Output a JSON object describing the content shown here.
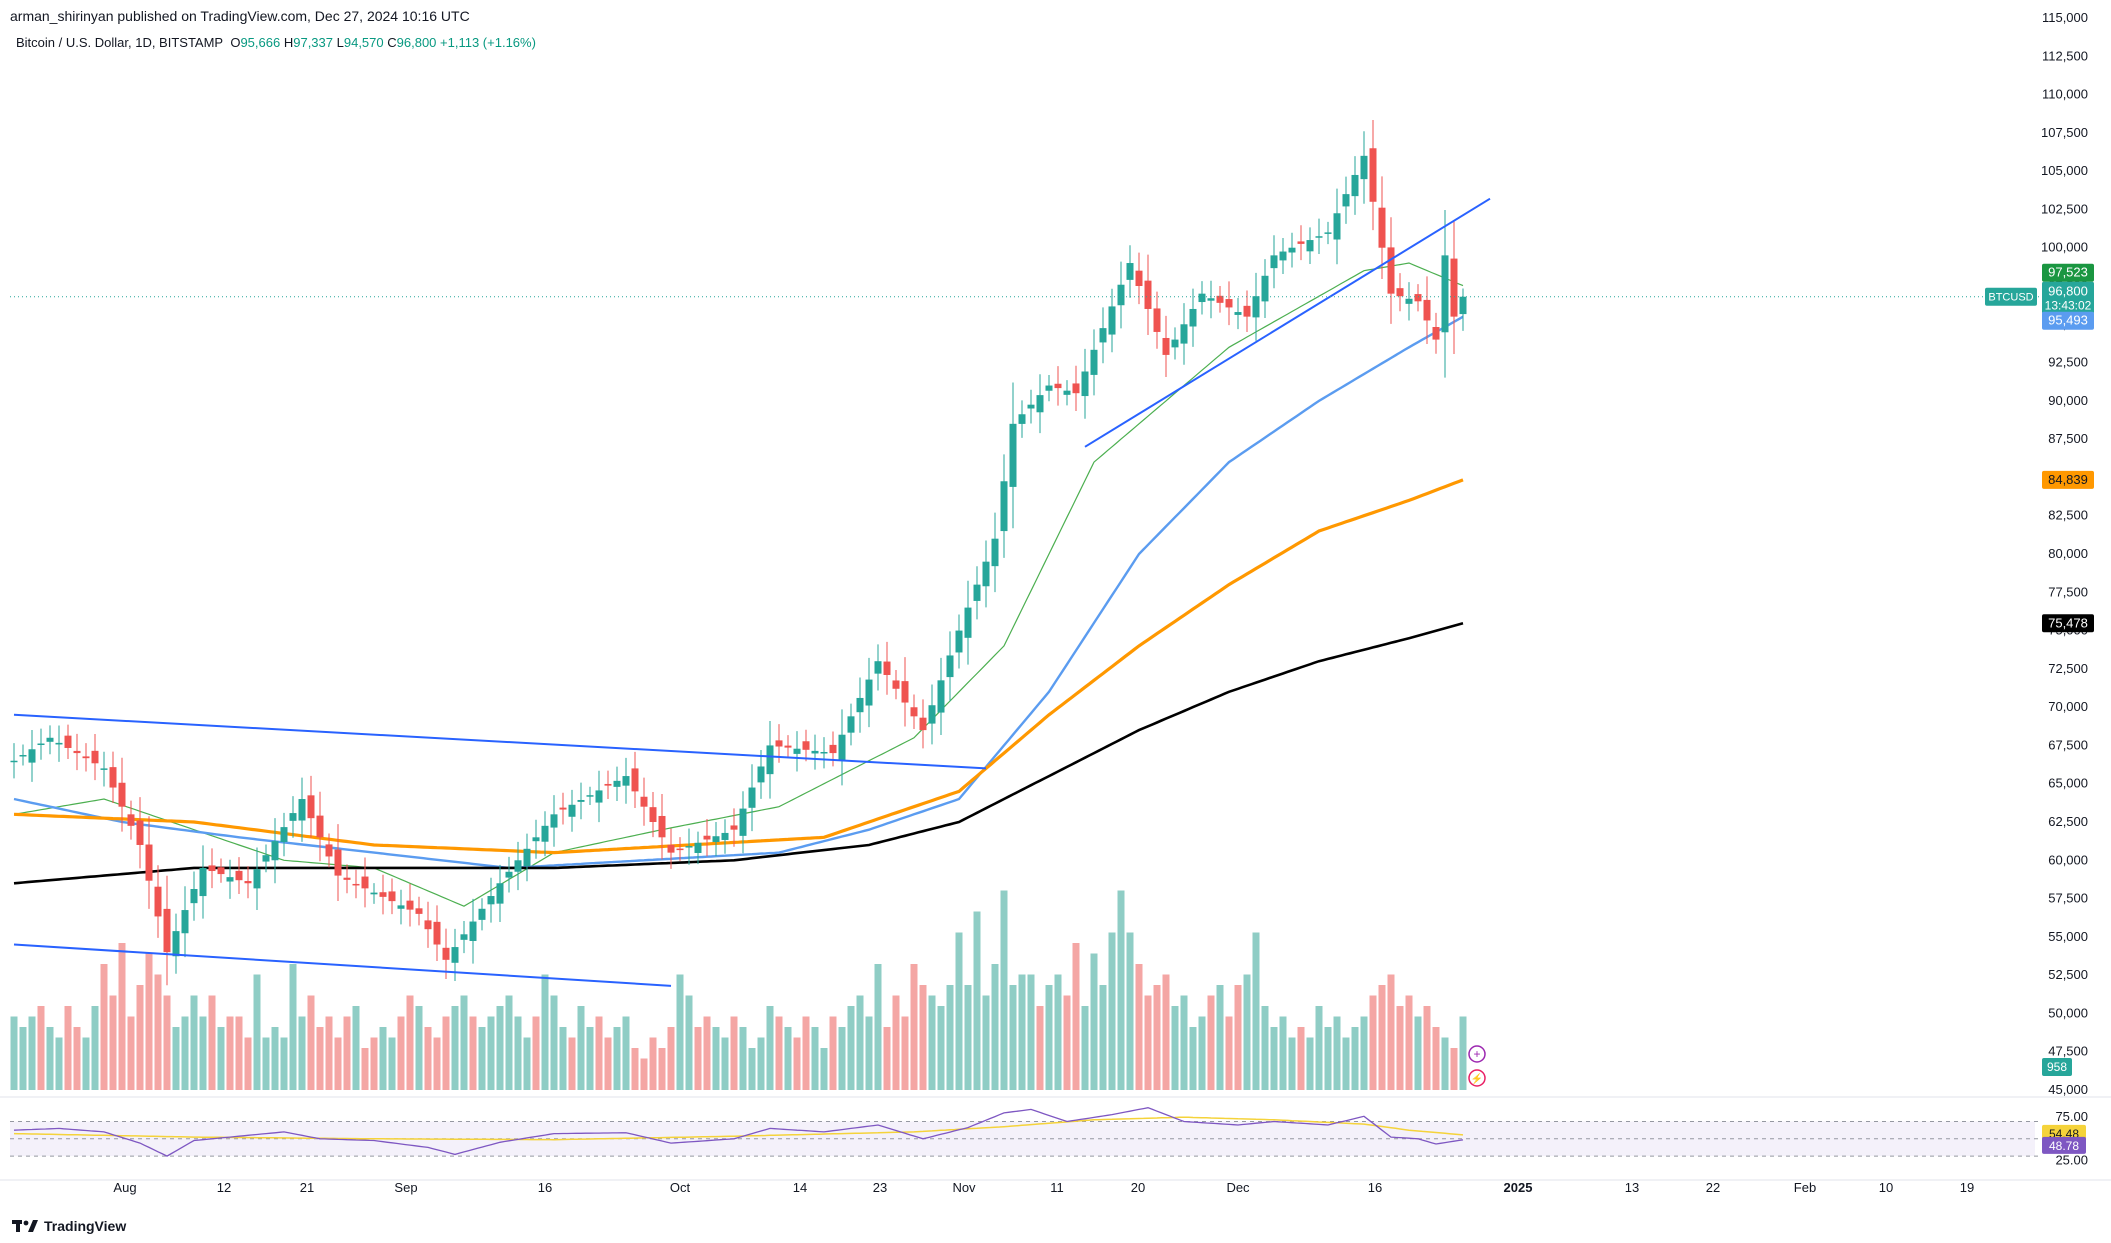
{
  "header": {
    "published": "arman_shirinyan published on TradingView.com, Dec 27, 2024 10:16 UTC"
  },
  "legend": {
    "symbol": "Bitcoin / U.S. Dollar, 1D, BITSTAMP",
    "open_label": "O",
    "open": "95,666",
    "high_label": "H",
    "high": "97,337",
    "low_label": "L",
    "low": "94,570",
    "close_label": "C",
    "close": "96,800",
    "change": "+1,113 (+1.16%)"
  },
  "footer": {
    "brand": "TradingView"
  },
  "colors": {
    "up": "#26a69a",
    "down": "#ef5350",
    "vol_up": "#8fcdc5",
    "vol_down": "#f4a6a4",
    "ema20": "#4caf50",
    "ema50": "#5b9cf0",
    "ema100": "#ff9800",
    "ema200": "#000000",
    "channel": "#2962ff",
    "rsi": "#7e57c2",
    "rsi_ma": "#f5d33a"
  },
  "chart_data": [
    {
      "type": "candlestick",
      "symbol": "BTCUSD",
      "timeframe": "1D",
      "y_range": [
        45000,
        115000
      ],
      "y_ticks": [
        "115,000",
        "112,500",
        "110,000",
        "107,500",
        "105,000",
        "102,500",
        "100,000",
        "97,500",
        "95,000",
        "92,500",
        "90,000",
        "87,500",
        "85,000",
        "82,500",
        "80,000",
        "77,500",
        "75,000",
        "72,500",
        "70,000",
        "67,500",
        "65,000",
        "62,500",
        "60,000",
        "57,500",
        "55,000",
        "52,500",
        "50,000",
        "47,500",
        "45,000"
      ],
      "x_ticks": [
        "Aug",
        "12",
        "21",
        "Sep",
        "16",
        "Oct",
        "14",
        "23",
        "Nov",
        "11",
        "20",
        "Dec",
        "16",
        "2025",
        "13",
        "22",
        "Feb",
        "10",
        "19"
      ],
      "ohlc_keypoints": [
        {
          "day": 0,
          "close": 66500
        },
        {
          "day": 4,
          "close": 68000
        },
        {
          "day": 10,
          "close": 66000
        },
        {
          "day": 14,
          "close": 61000
        },
        {
          "day": 17,
          "close": 54000
        },
        {
          "day": 21,
          "close": 59500
        },
        {
          "day": 26,
          "close": 58500
        },
        {
          "day": 32,
          "close": 64000
        },
        {
          "day": 36,
          "close": 59000
        },
        {
          "day": 45,
          "close": 56500
        },
        {
          "day": 48,
          "close": 53500
        },
        {
          "day": 54,
          "close": 58500
        },
        {
          "day": 60,
          "close": 63000
        },
        {
          "day": 68,
          "close": 65500
        },
        {
          "day": 73,
          "close": 60500
        },
        {
          "day": 80,
          "close": 62000
        },
        {
          "day": 84,
          "close": 67500
        },
        {
          "day": 91,
          "close": 67000
        },
        {
          "day": 96,
          "close": 73000
        },
        {
          "day": 101,
          "close": 68500
        },
        {
          "day": 105,
          "close": 75000
        },
        {
          "day": 109,
          "close": 81000
        },
        {
          "day": 111,
          "close": 88500
        },
        {
          "day": 115,
          "close": 91000
        },
        {
          "day": 118,
          "close": 90500
        },
        {
          "day": 124,
          "close": 99000
        },
        {
          "day": 128,
          "close": 93000
        },
        {
          "day": 132,
          "close": 97000
        },
        {
          "day": 137,
          "close": 95500
        },
        {
          "day": 140,
          "close": 99500
        },
        {
          "day": 146,
          "close": 101000
        },
        {
          "day": 150,
          "close": 106000
        },
        {
          "day": 153,
          "close": 97000
        },
        {
          "day": 156,
          "close": 96500
        },
        {
          "day": 158,
          "close": 94000
        },
        {
          "day": 159,
          "close": 99500
        },
        {
          "day": 160,
          "close": 95500
        },
        {
          "day": 161,
          "close": 96800
        }
      ],
      "last_candle": {
        "open": 95666,
        "high": 97337,
        "low": 94570,
        "close": 96800
      },
      "series": [
        {
          "name": "EMA 20 (thin green)",
          "keypoints": [
            [
              0,
              63000
            ],
            [
              10,
              64000
            ],
            [
              20,
              62000
            ],
            [
              30,
              60000
            ],
            [
              40,
              59500
            ],
            [
              50,
              57000
            ],
            [
              60,
              60500
            ],
            [
              72,
              62000
            ],
            [
              85,
              63500
            ],
            [
              100,
              68000
            ],
            [
              110,
              74000
            ],
            [
              120,
              86000
            ],
            [
              135,
              93500
            ],
            [
              150,
              98500
            ],
            [
              155,
              99000
            ],
            [
              161,
              97523
            ]
          ]
        },
        {
          "name": "EMA 50 (blue)",
          "keypoints": [
            [
              0,
              64000
            ],
            [
              12,
              62500
            ],
            [
              25,
              61500
            ],
            [
              40,
              60500
            ],
            [
              55,
              59500
            ],
            [
              70,
              60000
            ],
            [
              85,
              60500
            ],
            [
              95,
              62000
            ],
            [
              105,
              64000
            ],
            [
              115,
              71000
            ],
            [
              125,
              80000
            ],
            [
              135,
              86000
            ],
            [
              145,
              90000
            ],
            [
              155,
              93500
            ],
            [
              161,
              95493
            ]
          ]
        },
        {
          "name": "EMA 100 (orange)",
          "keypoints": [
            [
              0,
              63000
            ],
            [
              20,
              62500
            ],
            [
              40,
              61000
            ],
            [
              60,
              60500
            ],
            [
              75,
              61000
            ],
            [
              90,
              61500
            ],
            [
              105,
              64500
            ],
            [
              115,
              69500
            ],
            [
              125,
              74000
            ],
            [
              135,
              78000
            ],
            [
              145,
              81500
            ],
            [
              155,
              83500
            ],
            [
              161,
              84839
            ]
          ]
        },
        {
          "name": "EMA 200 (black)",
          "keypoints": [
            [
              0,
              58500
            ],
            [
              20,
              59500
            ],
            [
              40,
              59500
            ],
            [
              60,
              59500
            ],
            [
              80,
              60000
            ],
            [
              95,
              61000
            ],
            [
              105,
              62500
            ],
            [
              115,
              65500
            ],
            [
              125,
              68500
            ],
            [
              135,
              71000
            ],
            [
              145,
              73000
            ],
            [
              155,
              74500
            ],
            [
              161,
              75478
            ]
          ]
        }
      ],
      "price_labels": [
        {
          "name": "ema20",
          "text": "97,523",
          "value": 97523
        },
        {
          "name": "last",
          "text": "96,800",
          "value": 96800,
          "symbol": "BTCUSD",
          "countdown": "13:43:02"
        },
        {
          "name": "ema50",
          "text": "95,493",
          "value": 95493
        },
        {
          "name": "ema100",
          "text": "84,839",
          "value": 84839
        },
        {
          "name": "ema200",
          "text": "75,478",
          "value": 75478
        }
      ],
      "trendlines": [
        {
          "name": "upper channel",
          "from": [
            0,
            69500
          ],
          "to": [
            108,
            66000
          ]
        },
        {
          "name": "lower channel",
          "from": [
            0,
            54500
          ],
          "to": [
            73,
            51800
          ]
        },
        {
          "name": "rising support",
          "from": [
            119,
            87000
          ],
          "to": [
            164,
            103200
          ]
        }
      ]
    },
    {
      "type": "bar",
      "name": "Volume",
      "last_value": "958",
      "values_relative": [
        0.35,
        0.3,
        0.35,
        0.4,
        0.3,
        0.25,
        0.4,
        0.3,
        0.25,
        0.4,
        0.6,
        0.45,
        0.7,
        0.35,
        0.5,
        0.65,
        0.55,
        0.45,
        0.3,
        0.35,
        0.45,
        0.35,
        0.45,
        0.3,
        0.35,
        0.35,
        0.25,
        0.55,
        0.25,
        0.3,
        0.25,
        0.6,
        0.35,
        0.45,
        0.3,
        0.35,
        0.25,
        0.35,
        0.4,
        0.2,
        0.25,
        0.3,
        0.25,
        0.35,
        0.45,
        0.4,
        0.3,
        0.25,
        0.35,
        0.4,
        0.45,
        0.35,
        0.3,
        0.35,
        0.4,
        0.45,
        0.35,
        0.25,
        0.35,
        0.55,
        0.45,
        0.3,
        0.25,
        0.4,
        0.3,
        0.35,
        0.25,
        0.3,
        0.35,
        0.2,
        0.15,
        0.25,
        0.2,
        0.3,
        0.55,
        0.45,
        0.3,
        0.35,
        0.3,
        0.25,
        0.35,
        0.3,
        0.2,
        0.25,
        0.4,
        0.35,
        0.3,
        0.25,
        0.35,
        0.3,
        0.2,
        0.35,
        0.3,
        0.4,
        0.45,
        0.35,
        0.6,
        0.3,
        0.45,
        0.35,
        0.6,
        0.5,
        0.45,
        0.4,
        0.5,
        0.75,
        0.5,
        0.85,
        0.45,
        0.6,
        0.95,
        0.5,
        0.55,
        0.55,
        0.4,
        0.5,
        0.55,
        0.45,
        0.7,
        0.4,
        0.65,
        0.5,
        0.75,
        0.95,
        0.75,
        0.6,
        0.45,
        0.5,
        0.55,
        0.4,
        0.45,
        0.3,
        0.35,
        0.45,
        0.5,
        0.35,
        0.5,
        0.55,
        0.75,
        0.4,
        0.3,
        0.35,
        0.25,
        0.3,
        0.25,
        0.4,
        0.3,
        0.35,
        0.25,
        0.3,
        0.35,
        0.45,
        0.5,
        0.55,
        0.4,
        0.45,
        0.35,
        0.4,
        0.3,
        0.25,
        0.2,
        0.35
      ]
    },
    {
      "type": "line",
      "name": "RSI",
      "y_ticks": [
        "75.00",
        "25.00"
      ],
      "y_range": [
        0,
        100
      ],
      "levels": [
        70,
        50,
        30
      ],
      "rsi_value": "48.78",
      "rsi_ma_value": "54.48",
      "rsi_keypoints": [
        [
          0,
          60
        ],
        [
          5,
          62
        ],
        [
          10,
          58
        ],
        [
          14,
          45
        ],
        [
          17,
          30
        ],
        [
          20,
          48
        ],
        [
          24,
          52
        ],
        [
          30,
          58
        ],
        [
          34,
          50
        ],
        [
          40,
          48
        ],
        [
          46,
          40
        ],
        [
          49,
          32
        ],
        [
          54,
          46
        ],
        [
          60,
          56
        ],
        [
          68,
          57
        ],
        [
          73,
          45
        ],
        [
          80,
          50
        ],
        [
          84,
          62
        ],
        [
          90,
          58
        ],
        [
          96,
          66
        ],
        [
          101,
          50
        ],
        [
          106,
          63
        ],
        [
          110,
          80
        ],
        [
          113,
          84
        ],
        [
          117,
          70
        ],
        [
          122,
          78
        ],
        [
          126,
          86
        ],
        [
          130,
          70
        ],
        [
          136,
          66
        ],
        [
          140,
          70
        ],
        [
          146,
          66
        ],
        [
          150,
          76
        ],
        [
          153,
          52
        ],
        [
          156,
          50
        ],
        [
          158,
          44
        ],
        [
          161,
          48.78
        ]
      ],
      "rsi_ma_keypoints": [
        [
          0,
          56
        ],
        [
          20,
          52
        ],
        [
          40,
          50
        ],
        [
          60,
          49
        ],
        [
          80,
          53
        ],
        [
          100,
          58
        ],
        [
          110,
          64
        ],
        [
          120,
          72
        ],
        [
          130,
          75
        ],
        [
          140,
          72
        ],
        [
          150,
          67
        ],
        [
          155,
          60
        ],
        [
          161,
          54.48
        ]
      ]
    }
  ]
}
